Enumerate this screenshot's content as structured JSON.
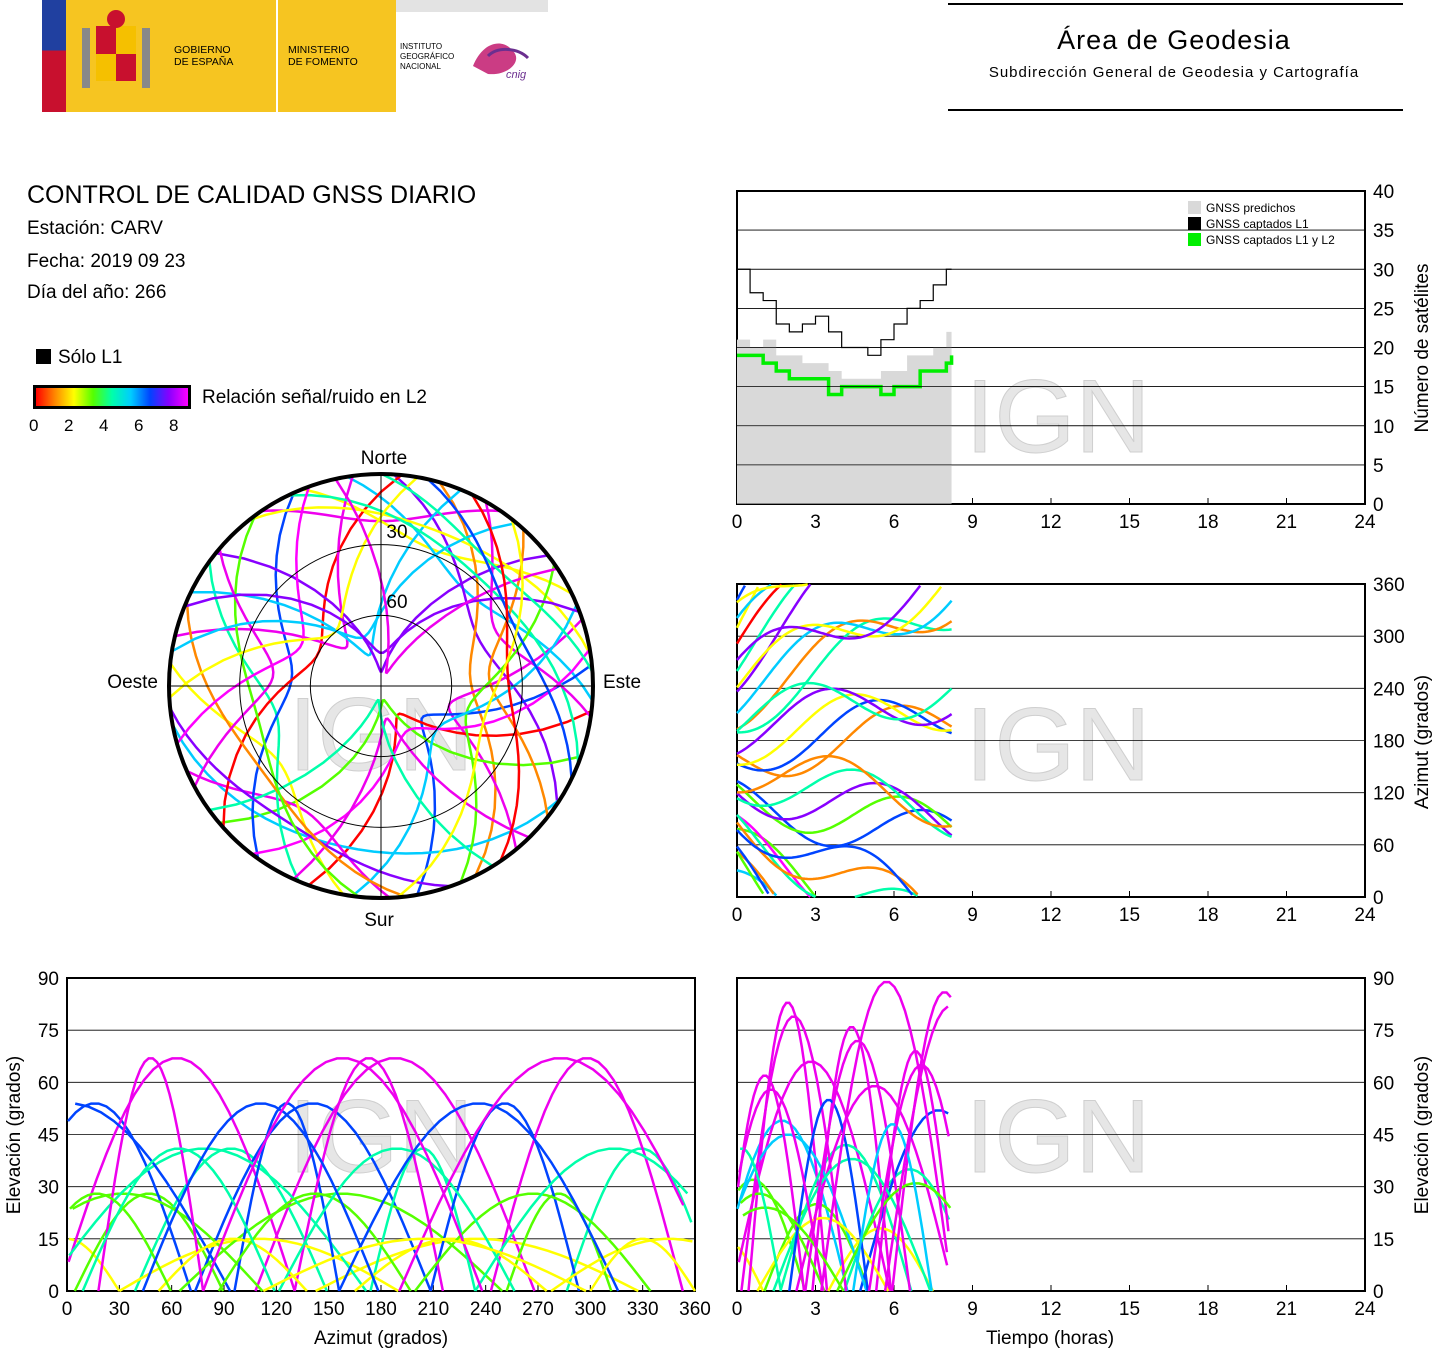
{
  "header": {
    "gov_line1": "GOBIERNO",
    "gov_line2": "DE ESPAÑA",
    "ministry_line1": "MINISTERIO",
    "ministry_line2": "DE FOMENTO",
    "ign_line1": "INSTITUTO",
    "ign_line2": "GEOGRÁFICO",
    "ign_line3": "NACIONAL",
    "cnig": "cnig",
    "area_title": "Área de Geodesia",
    "area_subtitle": "Subdirección General de Geodesia y Cartografía"
  },
  "report": {
    "title": "CONTROL DE CALIDAD GNSS DIARIO",
    "station": "Estación: CARV",
    "date": "Fecha: 2019 09 23",
    "doy": "Día del año: 266"
  },
  "legend": {
    "l1_only": "Sólo L1",
    "snr_label": "Relación señal/ruido en L2",
    "snr_ticks": [
      "0",
      "2",
      "4",
      "6",
      "8"
    ]
  },
  "watermark": "IGN",
  "colors": {
    "predicted": "#d9d9d9",
    "captured_l1": "#000000",
    "captured_l1l2": "#00ee00",
    "magenta": "#ee00ee"
  },
  "chart_data": [
    {
      "id": "satellite_count",
      "type": "area",
      "ylabel": "Número de satélites",
      "ylim": [
        0,
        40
      ],
      "xlim": [
        0,
        24
      ],
      "yticks": [
        "0",
        "5",
        "10",
        "15",
        "20",
        "25",
        "30",
        "35",
        "40"
      ],
      "xticks": [
        "0",
        "3",
        "6",
        "9",
        "12",
        "15",
        "18",
        "21",
        "24"
      ],
      "legend": [
        "GNSS predichos",
        "GNSS captados L1",
        "GNSS captados L1 y L2"
      ],
      "legend_position": "top-right",
      "grid": "horizontal",
      "series": [
        {
          "name": "GNSS predichos",
          "x": [
            0,
            0.5,
            1,
            1.5,
            2,
            2.5,
            3,
            3.5,
            4,
            4.5,
            5,
            5.5,
            6,
            6.5,
            7,
            7.5,
            8,
            8.2
          ],
          "values": [
            21,
            20,
            21,
            19,
            19,
            18,
            18,
            17,
            16,
            16,
            16,
            17,
            17,
            19,
            19,
            20,
            22,
            23
          ]
        },
        {
          "name": "GNSS captados L1",
          "x": [
            0,
            0.5,
            1,
            1.5,
            2,
            2.5,
            3,
            3.5,
            4,
            4.5,
            5,
            5.5,
            6,
            6.5,
            7,
            7.5,
            8,
            8.2
          ],
          "values": [
            30,
            27,
            26,
            23,
            22,
            23,
            24,
            22,
            20,
            20,
            19,
            21,
            23,
            25,
            26,
            28,
            30,
            30
          ]
        },
        {
          "name": "GNSS captados L1 y L2",
          "x": [
            0,
            0.5,
            1,
            1.5,
            2,
            2.5,
            3,
            3.5,
            4,
            4.5,
            5,
            5.5,
            6,
            6.5,
            7,
            7.5,
            8,
            8.2
          ],
          "values": [
            19,
            19,
            18,
            17,
            16,
            16,
            16,
            14,
            15,
            15,
            15,
            14,
            15,
            15,
            17,
            17,
            18,
            19
          ]
        }
      ]
    },
    {
      "id": "azimuth_time",
      "type": "scatter",
      "ylabel": "Azimut (grados)",
      "ylim": [
        0,
        360
      ],
      "xlim": [
        0,
        24
      ],
      "yticks": [
        "0",
        "60",
        "120",
        "180",
        "240",
        "300",
        "360"
      ],
      "xticks": [
        "0",
        "3",
        "6",
        "9",
        "12",
        "15",
        "18",
        "21",
        "24"
      ],
      "grid": "horizontal"
    },
    {
      "id": "skyplot",
      "type": "scatter",
      "directions": [
        "Norte",
        "Sur",
        "Este",
        "Oeste"
      ],
      "rings": [
        "30",
        "60"
      ]
    },
    {
      "id": "elevation_azimuth",
      "type": "scatter",
      "xlabel": "Azimut (grados)",
      "ylabel": "Elevación (grados)",
      "xlim": [
        0,
        360
      ],
      "ylim": [
        0,
        90
      ],
      "xticks": [
        "0",
        "30",
        "60",
        "90",
        "120",
        "150",
        "180",
        "210",
        "240",
        "270",
        "300",
        "330",
        "360"
      ],
      "yticks": [
        "0",
        "15",
        "30",
        "45",
        "60",
        "75",
        "90"
      ],
      "grid": "horizontal"
    },
    {
      "id": "elevation_time",
      "type": "scatter",
      "xlabel": "Tiempo (horas)",
      "ylabel": "Elevación (grados)",
      "xlim": [
        0,
        24
      ],
      "ylim": [
        0,
        90
      ],
      "xticks": [
        "0",
        "3",
        "6",
        "9",
        "12",
        "15",
        "18",
        "21",
        "24"
      ],
      "yticks": [
        "0",
        "15",
        "30",
        "45",
        "60",
        "75",
        "90"
      ],
      "grid": "horizontal"
    }
  ]
}
